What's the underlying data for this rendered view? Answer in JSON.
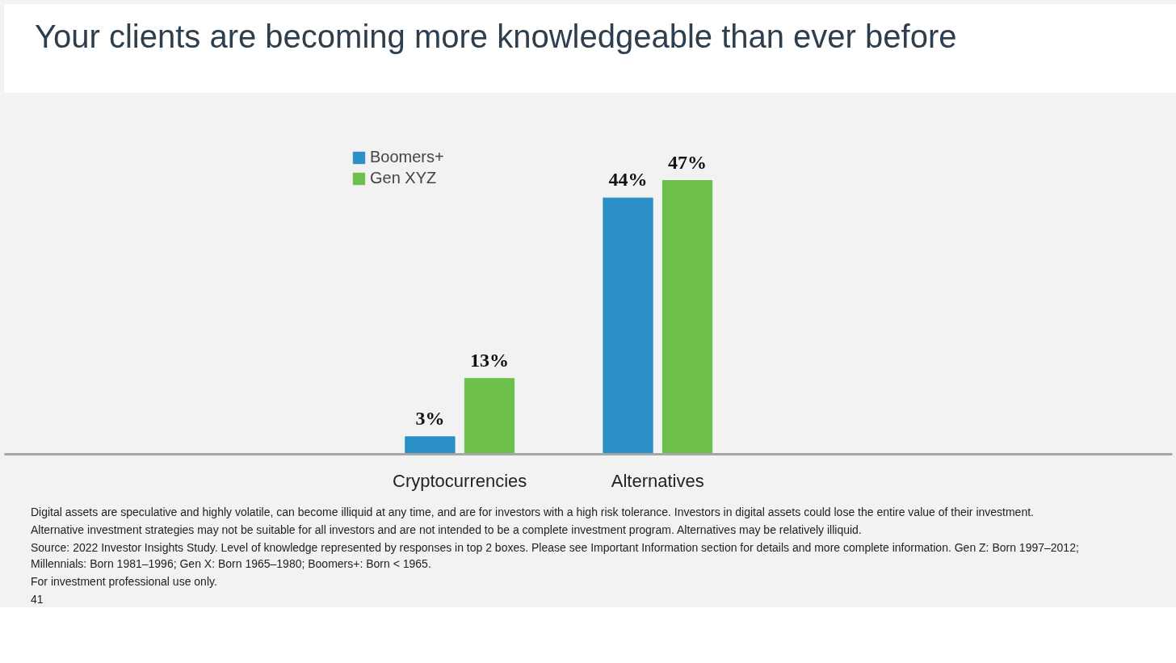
{
  "chart_data": {
    "type": "bar",
    "title": "Your clients are becoming more knowledgeable than ever before",
    "categories": [
      "Cryptocurrencies",
      "Alternatives"
    ],
    "series": [
      {
        "name": "Boomers+",
        "color": "#2a8fc4",
        "values": [
          3,
          44
        ],
        "value_labels": [
          "3%",
          "44%"
        ]
      },
      {
        "name": "Gen XYZ",
        "color": "#6cc04a",
        "values": [
          13,
          47
        ],
        "value_labels": [
          "13%",
          "47%"
        ]
      }
    ],
    "legend": "top left",
    "grid": false,
    "annotations": [
      "Digital assets are speculative and highly volatile, can become illiquid at any time, and are for investors with a high risk tolerance. Investors in digital assets could lose the entire value of their investment.",
      "Alternative investment strategies may not be suitable for all investors and are not intended to be a complete investment program. Alternatives may be relatively illiquid.",
      "Source: 2022 Investor Insights Study. Level of knowledge represented by responses in top 2 boxes. Please see Important Information section for details and more complete information. Gen Z: Born 1997–2012; Millennials: Born 1981–1996; Gen X: Born 1965–1980; Boomers+: Born < 1965.",
      "For investment professional use only.",
      "41"
    ]
  }
}
